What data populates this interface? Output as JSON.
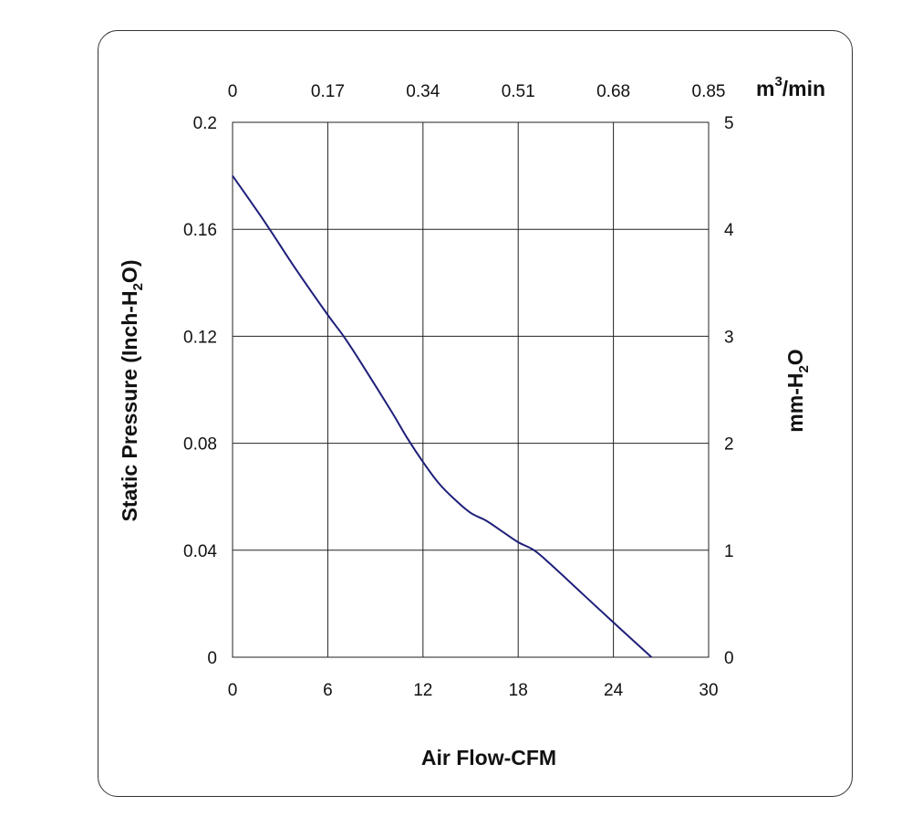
{
  "chart_data": {
    "type": "line",
    "xlabel": "Air Flow-CFM",
    "ylabel": {
      "main": "Static Pressure (Inch-H",
      "sub": "2",
      "tail": "O)"
    },
    "x2label": {
      "main": "m",
      "sup": "3",
      "tail": "/min"
    },
    "y2label": {
      "main": "mm-H",
      "sub": "2",
      "tail": "O"
    },
    "xlim": [
      0,
      30
    ],
    "ylim": [
      0,
      0.2
    ],
    "x_ticks": [
      "0",
      "6",
      "12",
      "18",
      "24",
      "30"
    ],
    "y_ticks": [
      "0",
      "0.04",
      "0.08",
      "0.12",
      "0.16",
      "0.2"
    ],
    "x2_ticks": [
      "0",
      "0.17",
      "0.34",
      "0.51",
      "0.68",
      "0.85"
    ],
    "y2_ticks": [
      "0",
      "1",
      "2",
      "3",
      "4",
      "5"
    ],
    "grid": true,
    "line_color": "#1f1f7a",
    "series": [
      {
        "x": [
          0,
          2,
          4,
          6,
          7,
          8,
          10,
          11,
          12,
          13,
          14,
          15,
          16,
          17,
          18,
          19,
          20,
          22,
          24,
          26.4
        ],
        "y": [
          0.18,
          0.163,
          0.145,
          0.128,
          0.12,
          0.111,
          0.092,
          0.082,
          0.073,
          0.065,
          0.059,
          0.054,
          0.051,
          0.047,
          0.043,
          0.04,
          0.035,
          0.024,
          0.013,
          0
        ]
      }
    ]
  }
}
